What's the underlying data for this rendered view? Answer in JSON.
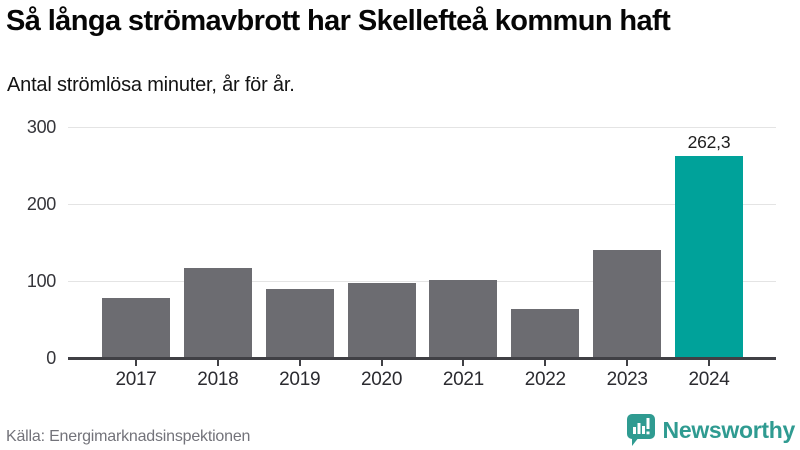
{
  "header": {
    "title": "Så långa strömavbrott har Skellefteå kommun haft",
    "subtitle": "Antal strömlösa minuter, år för år."
  },
  "chart_data": {
    "type": "bar",
    "title": "Så långa strömavbrott har Skellefteå kommun haft",
    "subtitle": "Antal strömlösa minuter, år för år.",
    "categories": [
      "2017",
      "2018",
      "2019",
      "2020",
      "2021",
      "2022",
      "2023",
      "2024"
    ],
    "values": [
      78,
      117,
      89,
      97,
      101,
      63,
      140,
      262.3
    ],
    "xlabel": "",
    "ylabel": "Antal strömlösa minuter",
    "ylim": [
      0,
      300
    ],
    "yticks": [
      "0",
      "100",
      "200",
      "300"
    ],
    "grid": true,
    "legend": false,
    "highlight_index": 7,
    "bar_color": "#6c6c71",
    "highlight_color": "#00a29a",
    "annotation": {
      "index": 7,
      "text": "262,3"
    }
  },
  "footer": {
    "source": "Källa: Energimarknadsinspektionen",
    "brand": "Newsworthy"
  },
  "colors": {
    "accent_teal": "#00a29a",
    "bar_gray": "#6c6c71",
    "axis": "#404045",
    "grid": "#e4e4e4",
    "brand_teal": "#2f9b91"
  }
}
